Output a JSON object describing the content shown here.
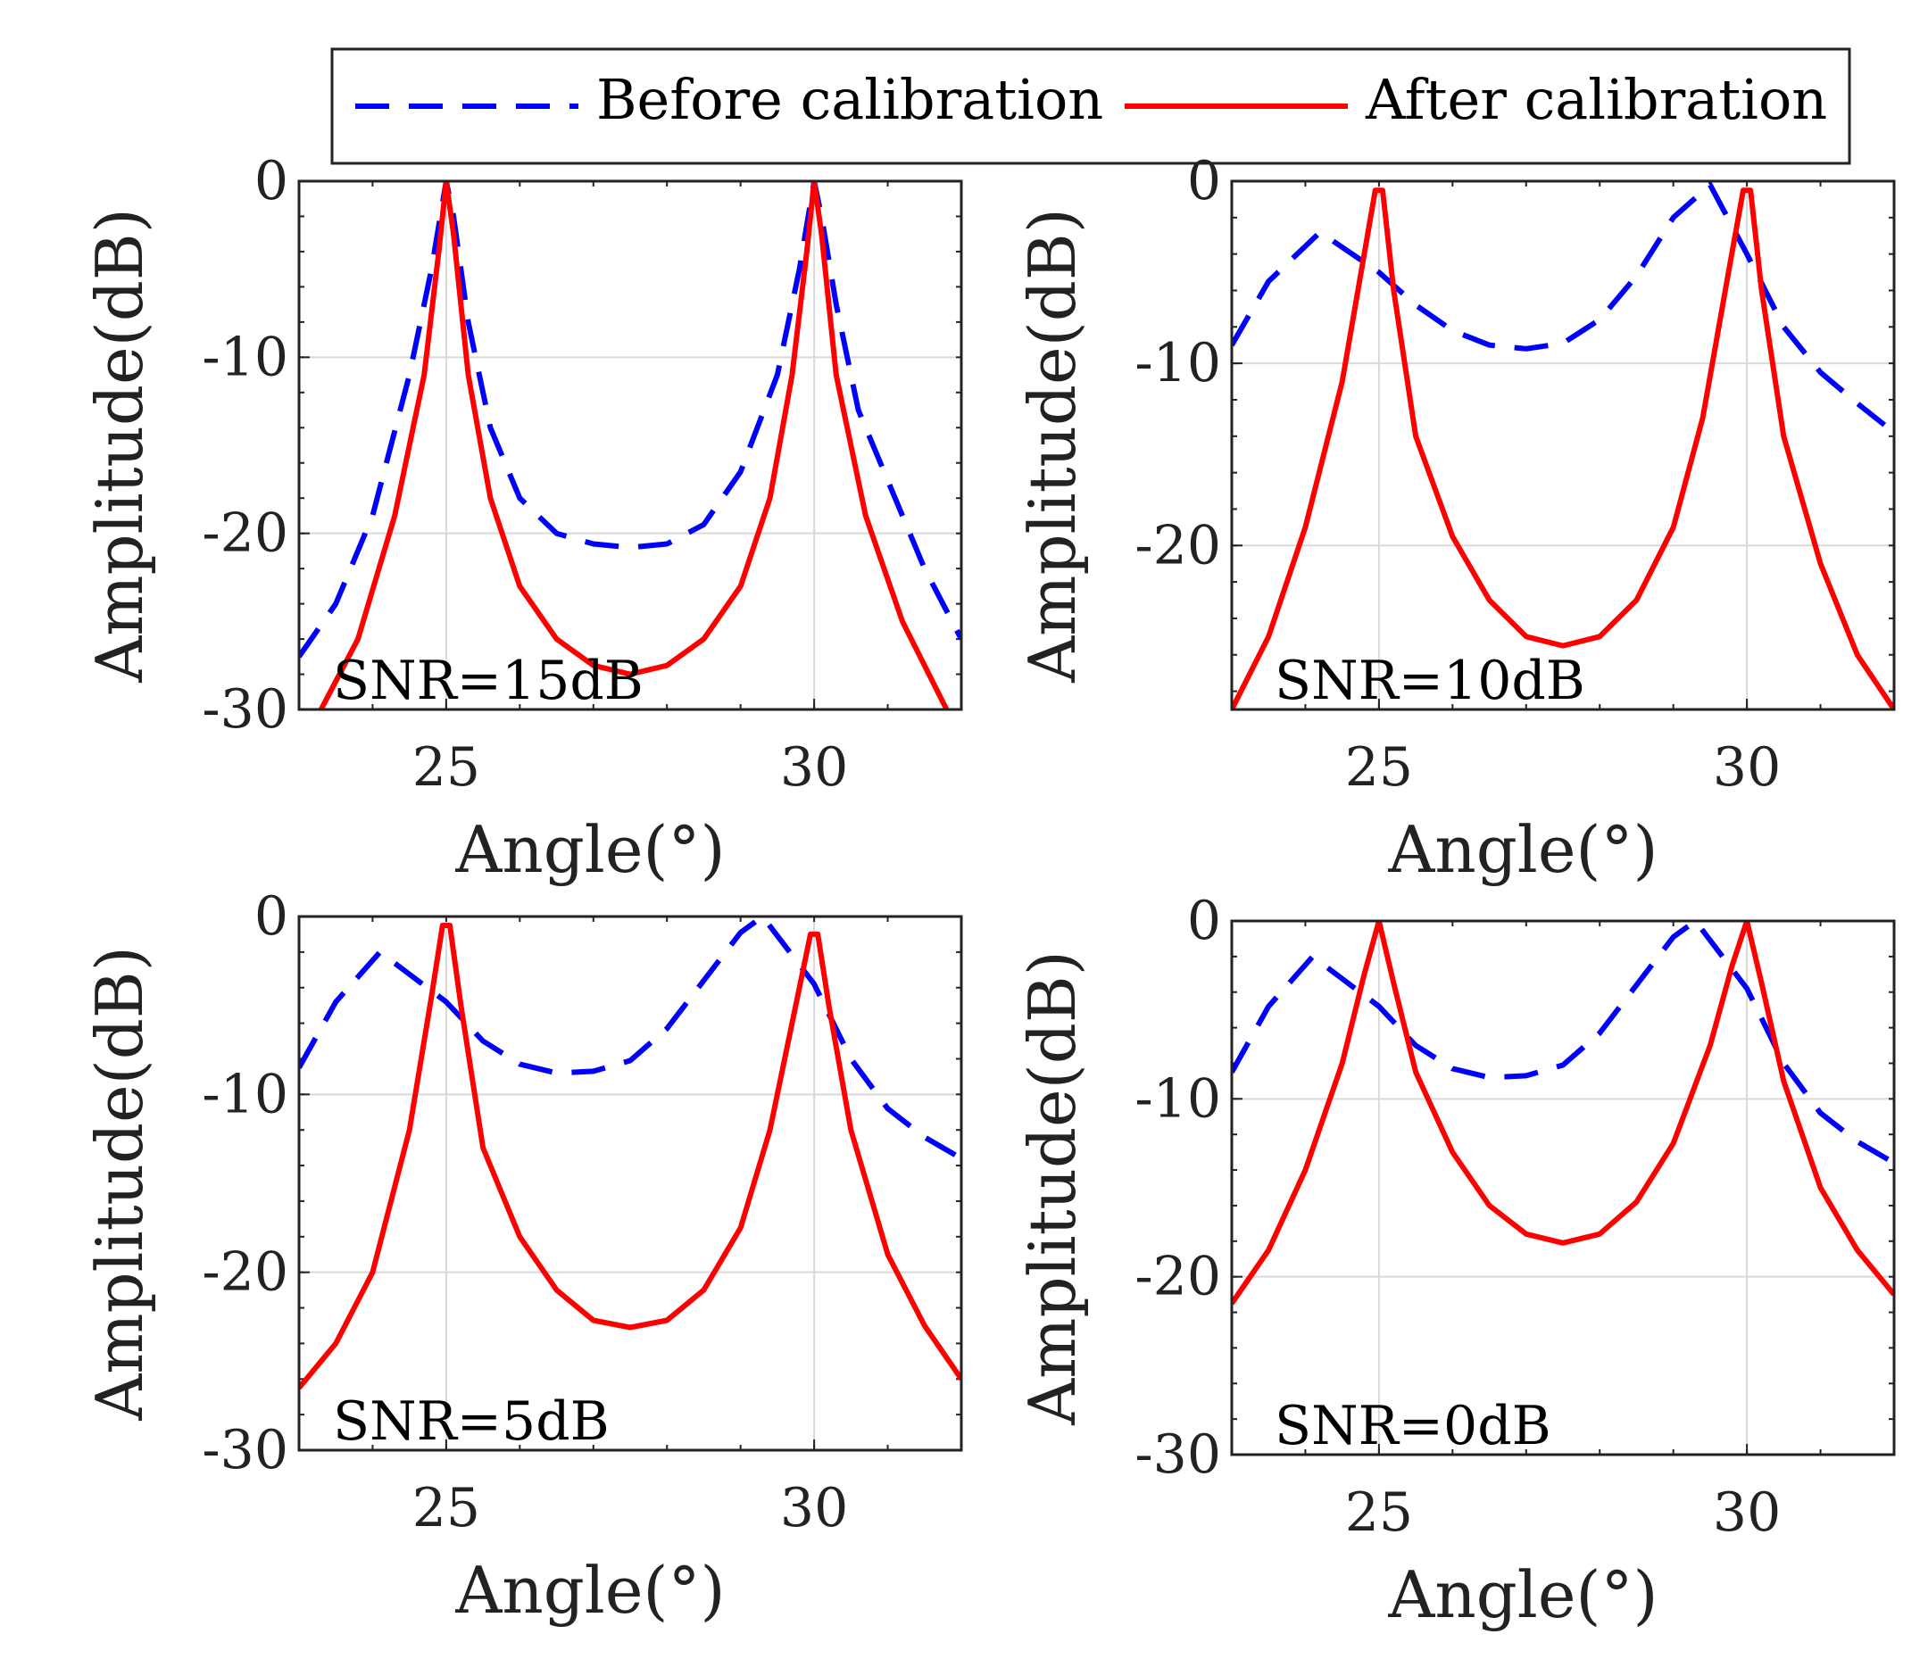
{
  "legend": {
    "placement": "top-center",
    "entries": [
      {
        "label": "Before calibration",
        "color": "#0000ff",
        "style": "dashed"
      },
      {
        "label": "After calibration",
        "color": "#ff0000",
        "style": "solid"
      }
    ]
  },
  "chart_data": [
    {
      "type": "line",
      "annotation": "SNR=15dB",
      "xlabel": "Angle(°)",
      "ylabel": "Amplitude(dB)",
      "xlim": [
        23,
        32
      ],
      "ylim": [
        -30,
        0
      ],
      "xticks": [
        {
          "value": 25,
          "label": "25"
        },
        {
          "value": 30,
          "label": "30"
        }
      ],
      "yticks": [
        {
          "value": 0,
          "label": "0"
        },
        {
          "value": -10,
          "label": "-10"
        },
        {
          "value": -20,
          "label": "-20"
        },
        {
          "value": -30,
          "label": "-30"
        }
      ],
      "grid": true,
      "series": [
        {
          "name": "Before calibration",
          "color": "#0000ff",
          "style": "dashed",
          "x": [
            23,
            23.5,
            24,
            24.5,
            24.8,
            25.0,
            25.1,
            25.3,
            25.6,
            26,
            26.5,
            27,
            27.5,
            28,
            28.5,
            29,
            29.5,
            29.8,
            30.0,
            30.1,
            30.3,
            30.6,
            31,
            31.5,
            32
          ],
          "y": [
            -27,
            -24,
            -19,
            -11,
            -5,
            0,
            -2,
            -8,
            -14,
            -18,
            -20,
            -20.6,
            -20.8,
            -20.6,
            -19.5,
            -16.5,
            -11,
            -5,
            0,
            -2,
            -7,
            -13,
            -17,
            -22,
            -26
          ]
        },
        {
          "name": "After calibration",
          "color": "#ff0000",
          "style": "solid",
          "x": [
            23.3,
            23.8,
            24.3,
            24.7,
            24.9,
            25.0,
            25.1,
            25.3,
            25.6,
            26,
            26.5,
            27,
            27.5,
            28,
            28.5,
            29,
            29.4,
            29.7,
            29.9,
            30.0,
            30.1,
            30.3,
            30.7,
            31.2,
            31.8
          ],
          "y": [
            -30,
            -26,
            -19,
            -11,
            -4,
            0,
            -3,
            -11,
            -18,
            -23,
            -26,
            -27.5,
            -28,
            -27.5,
            -26,
            -23,
            -18,
            -11,
            -4,
            0,
            -3,
            -11,
            -19,
            -25,
            -30
          ]
        }
      ]
    },
    {
      "type": "line",
      "annotation": "SNR=10dB",
      "xlabel": "Angle(°)",
      "ylabel": "Amplitude(dB)",
      "xlim": [
        23,
        32
      ],
      "ylim": [
        -29,
        0
      ],
      "xticks": [
        {
          "value": 25,
          "label": "25"
        },
        {
          "value": 30,
          "label": "30"
        }
      ],
      "yticks": [
        {
          "value": 0,
          "label": "0"
        },
        {
          "value": -10,
          "label": "-10"
        },
        {
          "value": -20,
          "label": "-20"
        }
      ],
      "grid": true,
      "series": [
        {
          "name": "Before calibration",
          "color": "#0000ff",
          "style": "dashed",
          "x": [
            23,
            23.5,
            24.2,
            25,
            25.5,
            26,
            26.5,
            27,
            27.5,
            28,
            28.5,
            29,
            29.5,
            30,
            30.5,
            31,
            31.5,
            32
          ],
          "y": [
            -9,
            -5.5,
            -2.8,
            -5,
            -6.8,
            -8.2,
            -9,
            -9.2,
            -8.9,
            -7.6,
            -5.2,
            -2,
            -0.2,
            -4,
            -8,
            -10.5,
            -12.2,
            -13.8
          ]
        },
        {
          "name": "After calibration",
          "color": "#ff0000",
          "style": "solid",
          "x": [
            23,
            23.5,
            24,
            24.5,
            24.8,
            24.95,
            25.05,
            25.2,
            25.5,
            26,
            26.5,
            27,
            27.5,
            28,
            28.5,
            29,
            29.4,
            29.75,
            29.95,
            30.05,
            30.2,
            30.5,
            31,
            31.5,
            32
          ],
          "y": [
            -29,
            -25,
            -19,
            -11,
            -4,
            -0.5,
            -0.5,
            -6,
            -14,
            -19.5,
            -23,
            -25,
            -25.5,
            -25,
            -23,
            -19,
            -13,
            -5,
            -0.5,
            -0.5,
            -6,
            -14,
            -21,
            -26,
            -29
          ]
        }
      ]
    },
    {
      "type": "line",
      "annotation": "SNR=5dB",
      "xlabel": "Angle(°)",
      "ylabel": "Amplitude(dB)",
      "xlim": [
        23,
        32
      ],
      "ylim": [
        -30,
        0
      ],
      "xticks": [
        {
          "value": 25,
          "label": "25"
        },
        {
          "value": 30,
          "label": "30"
        }
      ],
      "yticks": [
        {
          "value": 0,
          "label": "0"
        },
        {
          "value": -10,
          "label": "-10"
        },
        {
          "value": -20,
          "label": "-20"
        },
        {
          "value": -30,
          "label": "-30"
        }
      ],
      "grid": true,
      "series": [
        {
          "name": "Before calibration",
          "color": "#0000ff",
          "style": "dashed",
          "x": [
            23,
            23.5,
            24.1,
            25,
            25.5,
            26,
            26.5,
            27,
            27.5,
            28,
            28.5,
            29,
            29.3,
            30,
            30.5,
            31,
            31.5,
            32
          ],
          "y": [
            -8.5,
            -4.8,
            -2,
            -4.8,
            -7,
            -8.3,
            -8.8,
            -8.7,
            -8.1,
            -6.3,
            -3.6,
            -0.9,
            0,
            -3.8,
            -8,
            -10.8,
            -12.4,
            -13.6
          ]
        },
        {
          "name": "After calibration",
          "color": "#ff0000",
          "style": "solid",
          "x": [
            23,
            23.5,
            24,
            24.5,
            24.8,
            24.95,
            25.05,
            25.2,
            25.5,
            26,
            26.5,
            27,
            27.5,
            28,
            28.5,
            29,
            29.4,
            29.75,
            29.95,
            30.05,
            30.2,
            30.5,
            31,
            31.5,
            32
          ],
          "y": [
            -26.5,
            -24,
            -20,
            -12,
            -4.5,
            -0.5,
            -0.5,
            -5,
            -13,
            -18,
            -21,
            -22.7,
            -23.1,
            -22.7,
            -21,
            -17.5,
            -12,
            -5,
            -1,
            -1,
            -5,
            -12,
            -19,
            -23,
            -26
          ]
        }
      ]
    },
    {
      "type": "line",
      "annotation": "SNR=0dB",
      "xlabel": "Angle(°)",
      "ylabel": "Amplitude(dB)",
      "xlim": [
        23,
        32
      ],
      "ylim": [
        -30,
        0
      ],
      "xticks": [
        {
          "value": 25,
          "label": "25"
        },
        {
          "value": 30,
          "label": "30"
        }
      ],
      "yticks": [
        {
          "value": 0,
          "label": "0"
        },
        {
          "value": -10,
          "label": "-10"
        },
        {
          "value": -20,
          "label": "-20"
        },
        {
          "value": -30,
          "label": "-30"
        }
      ],
      "grid": true,
      "series": [
        {
          "name": "Before calibration",
          "color": "#0000ff",
          "style": "dashed",
          "x": [
            23,
            23.5,
            24.1,
            25,
            25.5,
            26,
            26.5,
            27,
            27.5,
            28,
            28.5,
            29,
            29.3,
            30,
            30.5,
            31,
            31.5,
            32
          ],
          "y": [
            -8.5,
            -4.8,
            -2,
            -4.8,
            -7,
            -8.3,
            -8.8,
            -8.7,
            -8.1,
            -6.3,
            -3.6,
            -0.9,
            0,
            -3.8,
            -8,
            -10.8,
            -12.4,
            -13.6
          ]
        },
        {
          "name": "After calibration",
          "color": "#ff0000",
          "style": "solid",
          "x": [
            23,
            23.5,
            24,
            24.5,
            24.8,
            25.0,
            25.2,
            25.5,
            26,
            26.5,
            27,
            27.5,
            28,
            28.5,
            29,
            29.5,
            29.8,
            30.0,
            30.2,
            30.5,
            31,
            31.5,
            32
          ],
          "y": [
            -21.5,
            -18.5,
            -14,
            -8,
            -3,
            0,
            -3.5,
            -8.5,
            -13,
            -16,
            -17.6,
            -18.1,
            -17.6,
            -15.8,
            -12.5,
            -7,
            -2.5,
            0,
            -3.5,
            -9,
            -15,
            -18.5,
            -21
          ]
        }
      ]
    }
  ]
}
